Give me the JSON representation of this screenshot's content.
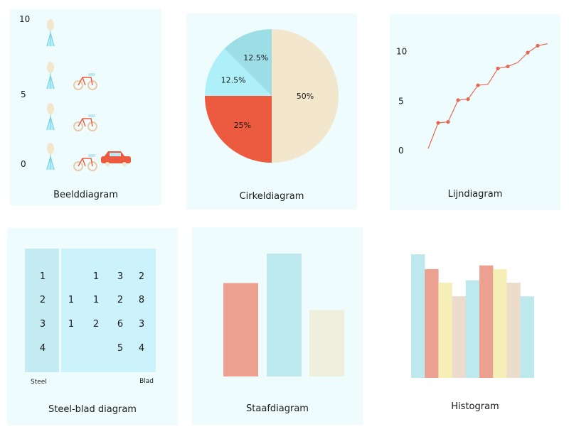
{
  "colors": {
    "panel": "#effcfd",
    "coral": "#ec5b3f",
    "peach": "#f2e6cc",
    "cyan": "#aef0fa",
    "teal": "#9ddde6",
    "line": "#e46a55",
    "stem": "#c4eaf2",
    "leaf": "#ccf3fb",
    "bar_red": "#eca090",
    "bar_cyan": "#bde9ee",
    "bar_cream": "#f0eedd",
    "hist_yellow": "#f6eeb7",
    "hist_tan": "#ecdccb"
  },
  "captions": {
    "pictogram": "Beelddiagram",
    "pie": "Cirkeldiagram",
    "line": "Lijndiagram",
    "stemleaf": "Steel-blad diagram",
    "bar": "Staafdiagram",
    "histogram": "Histogram"
  },
  "chart_data": [
    {
      "type": "pictogram",
      "title": "Beelddiagram",
      "y_ticks": [
        "0",
        "5",
        "10"
      ],
      "ylim": [
        0,
        10
      ],
      "categories": [
        "person-icon",
        "bicycle-icon",
        "car-icon"
      ],
      "values": [
        4,
        3,
        1
      ]
    },
    {
      "type": "pie",
      "title": "Cirkeldiagram",
      "labels": [
        "50%",
        "25%",
        "12.5%",
        "12.5%"
      ],
      "values": [
        50,
        25,
        12.5,
        12.5
      ],
      "colors": [
        "#f2e6cc",
        "#ec5b3f",
        "#aef0fa",
        "#9ddde6"
      ]
    },
    {
      "type": "line",
      "title": "Lijndiagram",
      "y_ticks": [
        "0",
        "5",
        "10"
      ],
      "ylim": [
        0,
        10
      ],
      "x": [
        0,
        1,
        2,
        3,
        4,
        5,
        6,
        7,
        8,
        9,
        10,
        11,
        12
      ],
      "values": [
        0.2,
        2.8,
        2.9,
        5.1,
        5.2,
        6.6,
        6.7,
        8.3,
        8.5,
        8.9,
        9.9,
        10.6,
        10.8
      ],
      "markers": [
        false,
        true,
        true,
        true,
        true,
        true,
        false,
        true,
        true,
        false,
        true,
        true,
        false
      ]
    },
    {
      "type": "table",
      "title": "Steel-blad diagram",
      "stem_label": "Steel",
      "leaf_label": "Blad",
      "rows": [
        {
          "stem": "1",
          "leaves": [
            "",
            "1",
            "3",
            "2"
          ]
        },
        {
          "stem": "2",
          "leaves": [
            "1",
            "1",
            "2",
            "8"
          ]
        },
        {
          "stem": "3",
          "leaves": [
            "1",
            "2",
            "6",
            "3"
          ]
        },
        {
          "stem": "4",
          "leaves": [
            "",
            "",
            "5",
            "4"
          ]
        }
      ]
    },
    {
      "type": "bar",
      "title": "Staafdiagram",
      "ylim": [
        0,
        10
      ],
      "values": [
        7.6,
        10,
        5.4
      ],
      "colors": [
        "#eca090",
        "#bde9ee",
        "#f0eedd"
      ]
    },
    {
      "type": "bar",
      "title": "Histogram",
      "ylim": [
        0,
        10
      ],
      "values": [
        10,
        8.8,
        7.7,
        6.6,
        7.9,
        9.1,
        8.8,
        7.7,
        6.6
      ],
      "colors": [
        "#bde9ee",
        "#eca090",
        "#f6eeb7",
        "#ecdccb",
        "#bde9ee",
        "#eca090",
        "#f6eeb7",
        "#ecdccb",
        "#bde9ee"
      ]
    }
  ]
}
